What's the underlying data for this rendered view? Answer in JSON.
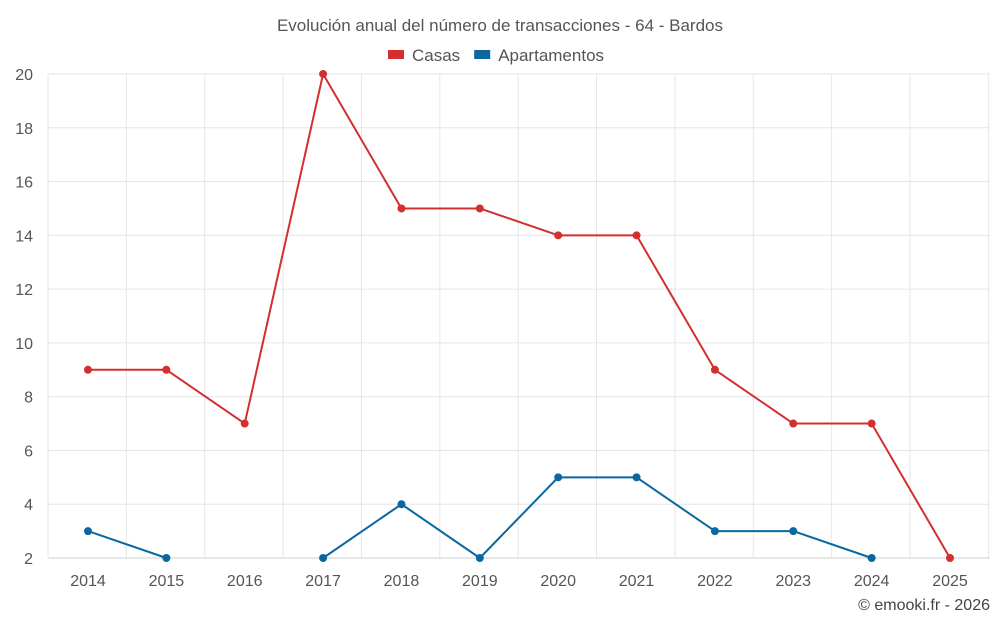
{
  "chart_data": {
    "type": "line",
    "title": "Evolución anual del número de transacciones - 64 - Bardos",
    "categories": [
      "2014",
      "2015",
      "2016",
      "2017",
      "2018",
      "2019",
      "2020",
      "2021",
      "2022",
      "2023",
      "2024",
      "2025"
    ],
    "series": [
      {
        "name": "Casas",
        "color": "#d32f2f",
        "values": [
          9,
          9,
          7,
          20,
          15,
          15,
          14,
          14,
          9,
          7,
          7,
          2
        ]
      },
      {
        "name": "Apartamentos",
        "color": "#0a67a0",
        "values": [
          3,
          2,
          null,
          2,
          4,
          2,
          5,
          5,
          3,
          3,
          2,
          null
        ]
      }
    ],
    "ylim": [
      2,
      20
    ],
    "yticks": [
      2,
      4,
      6,
      8,
      10,
      12,
      14,
      16,
      18,
      20
    ],
    "grid": true,
    "legend": "top-center"
  },
  "credit": "© emooki.fr - 2026"
}
